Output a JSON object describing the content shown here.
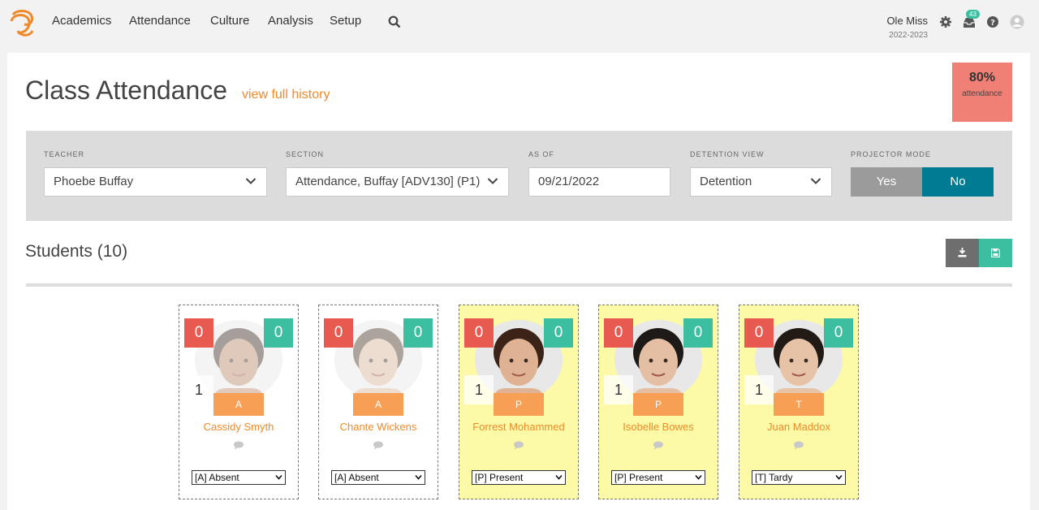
{
  "nav": {
    "items": [
      "Academics",
      "Attendance",
      "Culture",
      "Analysis",
      "Setup"
    ],
    "org_name": "Ole Miss",
    "org_year": "2022-2023",
    "inbox_count": "43",
    "icons": [
      "search-icon",
      "gear-icon",
      "inbox-icon",
      "help-icon",
      "user-avatar-icon"
    ]
  },
  "page": {
    "title": "Class Attendance",
    "history_link": "view full history",
    "attendance_pct": "80%",
    "attendance_label": "attendance"
  },
  "filters": {
    "teacher_label": "TEACHER",
    "teacher_value": "Phoebe Buffay",
    "section_label": "SECTION",
    "section_value": "Attendance, Buffay [ADV130] (P1)",
    "asof_label": "AS OF",
    "asof_value": "09/21/2022",
    "detention_label": "DETENTION VIEW",
    "detention_value": "Detention",
    "projector_label": "PROJECTOR MODE",
    "projector_yes": "Yes",
    "projector_no": "No"
  },
  "students_title": "Students (10)",
  "students": [
    {
      "name": "Cassidy Smyth",
      "red": "0",
      "green": "0",
      "num": "1",
      "code": "A",
      "status": "[A] Absent",
      "state": "absent",
      "skin": "#b98a6a",
      "hair": "#3a2a22"
    },
    {
      "name": "Chante Wickens",
      "red": "0",
      "green": "0",
      "num": "",
      "code": "A",
      "status": "[A] Absent",
      "state": "absent",
      "skin": "#d9b49a",
      "hair": "#4a3526"
    },
    {
      "name": "Forrest Mohammed",
      "red": "0",
      "green": "0",
      "num": "1",
      "code": "P",
      "status": "[P] Present",
      "state": "present",
      "skin": "#e0b294",
      "hair": "#3b2417"
    },
    {
      "name": "Isobelle Bowes",
      "red": "0",
      "green": "0",
      "num": "1",
      "code": "P",
      "status": "[P] Present",
      "state": "present",
      "skin": "#e4bfa3",
      "hair": "#1e1a18"
    },
    {
      "name": "Juan Maddox",
      "red": "0",
      "green": "0",
      "num": "1",
      "code": "T",
      "status": "[T] Tardy",
      "state": "tardy",
      "skin": "#e6c3a7",
      "hair": "#221a15"
    }
  ],
  "colors": {
    "accent": "#f0892a",
    "teal": "#007b94",
    "green": "#3bbfa0",
    "red": "#e85a4f",
    "attendance_box": "#f07f76",
    "present_bg": "#fdfaa7"
  }
}
